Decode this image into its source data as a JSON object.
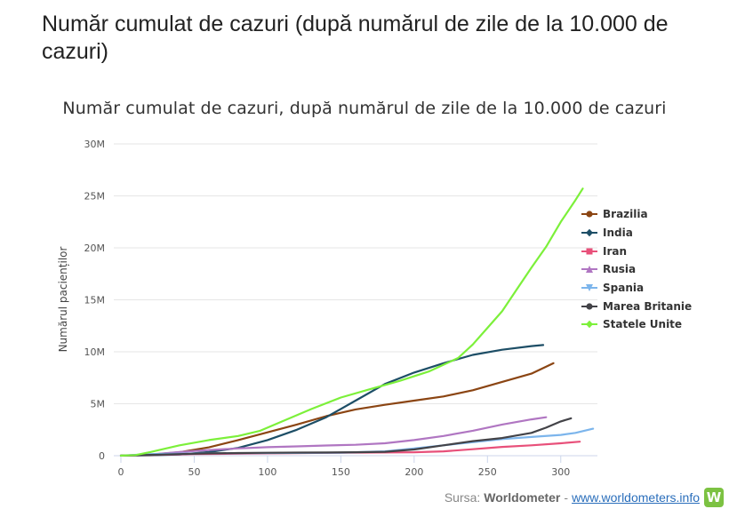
{
  "header": {
    "title": "Număr cumulat de cazuri (după numărul de zile de la 10.000 de cazuri)"
  },
  "source": {
    "prefix": "Sursa:",
    "name": "Worldometer",
    "separator": "-",
    "link": "www.worldometers.info",
    "logo_letter": "W",
    "logo_color": "#7cc242"
  },
  "chart_data": {
    "type": "line",
    "title": "Număr cumulat de cazuri, după numărul de zile de la 10.000 de cazuri",
    "xlabel": "",
    "ylabel": "Numărul pacienților",
    "xlim": [
      0,
      325
    ],
    "ylim": [
      0,
      30000000
    ],
    "x_ticks": [
      0,
      50,
      100,
      150,
      200,
      250,
      300
    ],
    "x_tick_labels": [
      "0",
      "50",
      "100",
      "150",
      "200",
      "250",
      "300"
    ],
    "y_ticks": [
      0,
      5000000,
      10000000,
      15000000,
      20000000,
      25000000,
      30000000
    ],
    "y_tick_labels": [
      "0",
      "5M",
      "10M",
      "15M",
      "20M",
      "25M",
      "30M"
    ],
    "grid": "horizontal",
    "legend_position": "right",
    "series": [
      {
        "name": "Brazilia",
        "color": "#8b4513",
        "marker": "circle",
        "x": [
          0,
          20,
          40,
          60,
          80,
          100,
          120,
          140,
          160,
          180,
          200,
          220,
          240,
          260,
          280,
          295
        ],
        "y": [
          10000,
          100000,
          330000,
          800000,
          1500000,
          2250000,
          3000000,
          3800000,
          4450000,
          4900000,
          5300000,
          5700000,
          6300000,
          7100000,
          7900000,
          8900000
        ]
      },
      {
        "name": "India",
        "color": "#1d4e66",
        "marker": "diamond",
        "x": [
          0,
          20,
          40,
          60,
          80,
          100,
          120,
          140,
          160,
          180,
          200,
          220,
          240,
          260,
          280,
          288
        ],
        "y": [
          10000,
          40000,
          120000,
          350000,
          750000,
          1500000,
          2500000,
          3700000,
          5300000,
          6900000,
          8000000,
          8900000,
          9700000,
          10200000,
          10550000,
          10650000
        ]
      },
      {
        "name": "Iran",
        "color": "#e8507a",
        "marker": "square",
        "x": [
          0,
          50,
          100,
          150,
          200,
          220,
          240,
          260,
          280,
          300,
          313
        ],
        "y": [
          10000,
          150000,
          220000,
          280000,
          330000,
          420000,
          620000,
          850000,
          1000000,
          1200000,
          1350000
        ]
      },
      {
        "name": "Rusia",
        "color": "#b076c2",
        "marker": "triangle",
        "x": [
          0,
          20,
          40,
          60,
          80,
          100,
          120,
          140,
          160,
          180,
          200,
          220,
          240,
          260,
          280,
          290
        ],
        "y": [
          10000,
          120000,
          350000,
          550000,
          700000,
          820000,
          900000,
          980000,
          1050000,
          1200000,
          1500000,
          1900000,
          2400000,
          3000000,
          3500000,
          3700000
        ]
      },
      {
        "name": "Spania",
        "color": "#7cb5ec",
        "marker": "triangle-down",
        "x": [
          0,
          20,
          40,
          60,
          100,
          150,
          180,
          200,
          220,
          240,
          260,
          280,
          300,
          310,
          322
        ],
        "y": [
          10000,
          150000,
          200000,
          230000,
          260000,
          290000,
          420000,
          700000,
          1000000,
          1300000,
          1600000,
          1800000,
          2000000,
          2200000,
          2600000
        ]
      },
      {
        "name": "Marea Britanie",
        "color": "#434348",
        "marker": "circle",
        "x": [
          0,
          20,
          40,
          60,
          80,
          100,
          120,
          140,
          160,
          180,
          200,
          220,
          240,
          260,
          280,
          290,
          300,
          307
        ],
        "y": [
          10000,
          80000,
          150000,
          220000,
          260000,
          280000,
          300000,
          310000,
          330000,
          380000,
          600000,
          1000000,
          1400000,
          1700000,
          2200000,
          2700000,
          3300000,
          3600000
        ]
      },
      {
        "name": "Statele Unite",
        "color": "#7cf03a",
        "marker": "diamond",
        "x": [
          0,
          10,
          20,
          40,
          60,
          80,
          95,
          110,
          130,
          150,
          170,
          190,
          210,
          230,
          240,
          250,
          260,
          270,
          280,
          290,
          300,
          310,
          315
        ],
        "y": [
          10000,
          60000,
          350000,
          1000000,
          1500000,
          1900000,
          2400000,
          3300000,
          4500000,
          5600000,
          6400000,
          7200000,
          8100000,
          9400000,
          10700000,
          12300000,
          13900000,
          16000000,
          18100000,
          20100000,
          22500000,
          24600000,
          25700000
        ]
      }
    ]
  }
}
